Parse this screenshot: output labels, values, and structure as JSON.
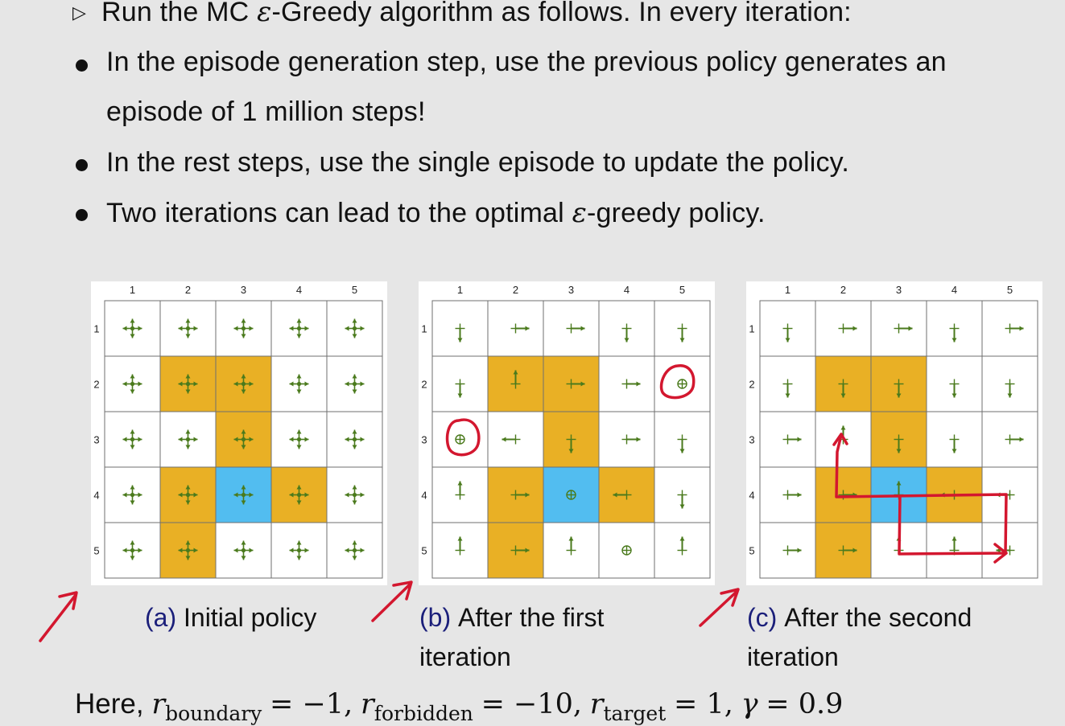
{
  "bullets": {
    "intro_pre": "Run the MC ",
    "intro_eps": "ε",
    "intro_post": "-Greedy algorithm as follows. In every iteration:",
    "b1_line1": "In the episode generation step, use the previous policy generates an",
    "b1_line2": "episode of 1 million steps!",
    "b2": "In the rest steps, use the single episode to update the policy.",
    "b3_pre": "Two iterations can lead to the optimal ",
    "b3_eps": "ε",
    "b3_post": "-greedy policy."
  },
  "grid_labels": {
    "cols": [
      "1",
      "2",
      "3",
      "4",
      "5"
    ],
    "rows": [
      "1",
      "2",
      "3",
      "4",
      "5"
    ]
  },
  "colors": {
    "forbidden": "#e9b025",
    "target": "#52bdf0",
    "arrow": "#4a7a1c",
    "annotation": "#d3172f"
  },
  "grid_cells": {
    "forbidden": [
      [
        2,
        2
      ],
      [
        2,
        3
      ],
      [
        3,
        3
      ],
      [
        4,
        2
      ],
      [
        4,
        4
      ],
      [
        5,
        2
      ]
    ],
    "target": [
      [
        4,
        3
      ]
    ]
  },
  "figures": [
    {
      "label": "(a)",
      "caption_l1": "Initial policy",
      "caption_l2": "",
      "policy": [
        [
          "uniform",
          "uniform",
          "uniform",
          "uniform",
          "uniform"
        ],
        [
          "uniform",
          "uniform",
          "uniform",
          "uniform",
          "uniform"
        ],
        [
          "uniform",
          "uniform",
          "uniform",
          "uniform",
          "uniform"
        ],
        [
          "uniform",
          "uniform",
          "uniform",
          "uniform",
          "uniform"
        ],
        [
          "uniform",
          "uniform",
          "uniform",
          "uniform",
          "uniform"
        ]
      ]
    },
    {
      "label": "(b)",
      "caption_l1": "After the first",
      "caption_l2": "iteration",
      "policy": [
        [
          "down",
          "right",
          "right",
          "down",
          "down"
        ],
        [
          "down",
          "up",
          "right",
          "right",
          "stay"
        ],
        [
          "stay",
          "left",
          "down",
          "right",
          "down"
        ],
        [
          "up",
          "right",
          "stay",
          "left",
          "down"
        ],
        [
          "up",
          "right",
          "up",
          "stay",
          "up"
        ]
      ]
    },
    {
      "label": "(c)",
      "caption_l1": "After the second",
      "caption_l2": "iteration",
      "policy": [
        [
          "down",
          "right",
          "right",
          "down",
          "right"
        ],
        [
          "down",
          "down",
          "down",
          "down",
          "down"
        ],
        [
          "right",
          "up",
          "down",
          "down",
          "right"
        ],
        [
          "right",
          "right",
          "up",
          "left",
          "left"
        ],
        [
          "right",
          "right",
          "up",
          "up",
          "left"
        ]
      ]
    }
  ],
  "formula": {
    "r": "r",
    "boundary_sub": "boundary",
    "boundary_val": "= −1,",
    "forbidden_sub": "forbidden",
    "forbidden_val": "= −10,",
    "target_sub": "target",
    "target_val": "= 1,",
    "gamma": "γ",
    "gamma_val": "= 0.9",
    "here": "Here,"
  }
}
